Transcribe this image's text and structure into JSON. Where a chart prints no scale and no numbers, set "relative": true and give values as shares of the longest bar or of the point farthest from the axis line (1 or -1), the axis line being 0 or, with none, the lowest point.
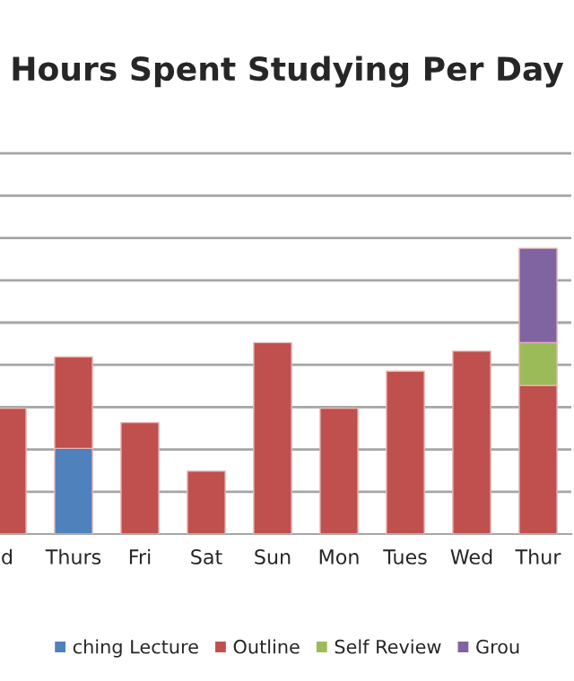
{
  "chart_data": {
    "type": "bar",
    "title": "Hours Spent Studying Per Day",
    "relative": true,
    "stacked": true,
    "grid": "y",
    "legend": "bottom",
    "categories": [
      "d",
      "Thurs",
      "Fri",
      "Sat",
      "Sun",
      "Mon",
      "Tues",
      "Wed",
      "Thur"
    ],
    "series": [
      {
        "name": "ching Lecture",
        "color": "#4f81bd",
        "values": [
          null,
          0.3,
          null,
          null,
          null,
          null,
          null,
          null,
          null
        ]
      },
      {
        "name": "Outline",
        "color": "#c0504d",
        "values": [
          0.44,
          0.32,
          0.39,
          0.22,
          0.67,
          0.44,
          0.57,
          0.64,
          0.52
        ]
      },
      {
        "name": "Self Review",
        "color": "#9bbb59",
        "values": [
          null,
          null,
          null,
          null,
          null,
          null,
          null,
          null,
          0.15
        ]
      },
      {
        "name": "Grou",
        "color": "#8064a2",
        "values": [
          null,
          null,
          null,
          null,
          null,
          null,
          null,
          null,
          0.33
        ]
      }
    ]
  }
}
